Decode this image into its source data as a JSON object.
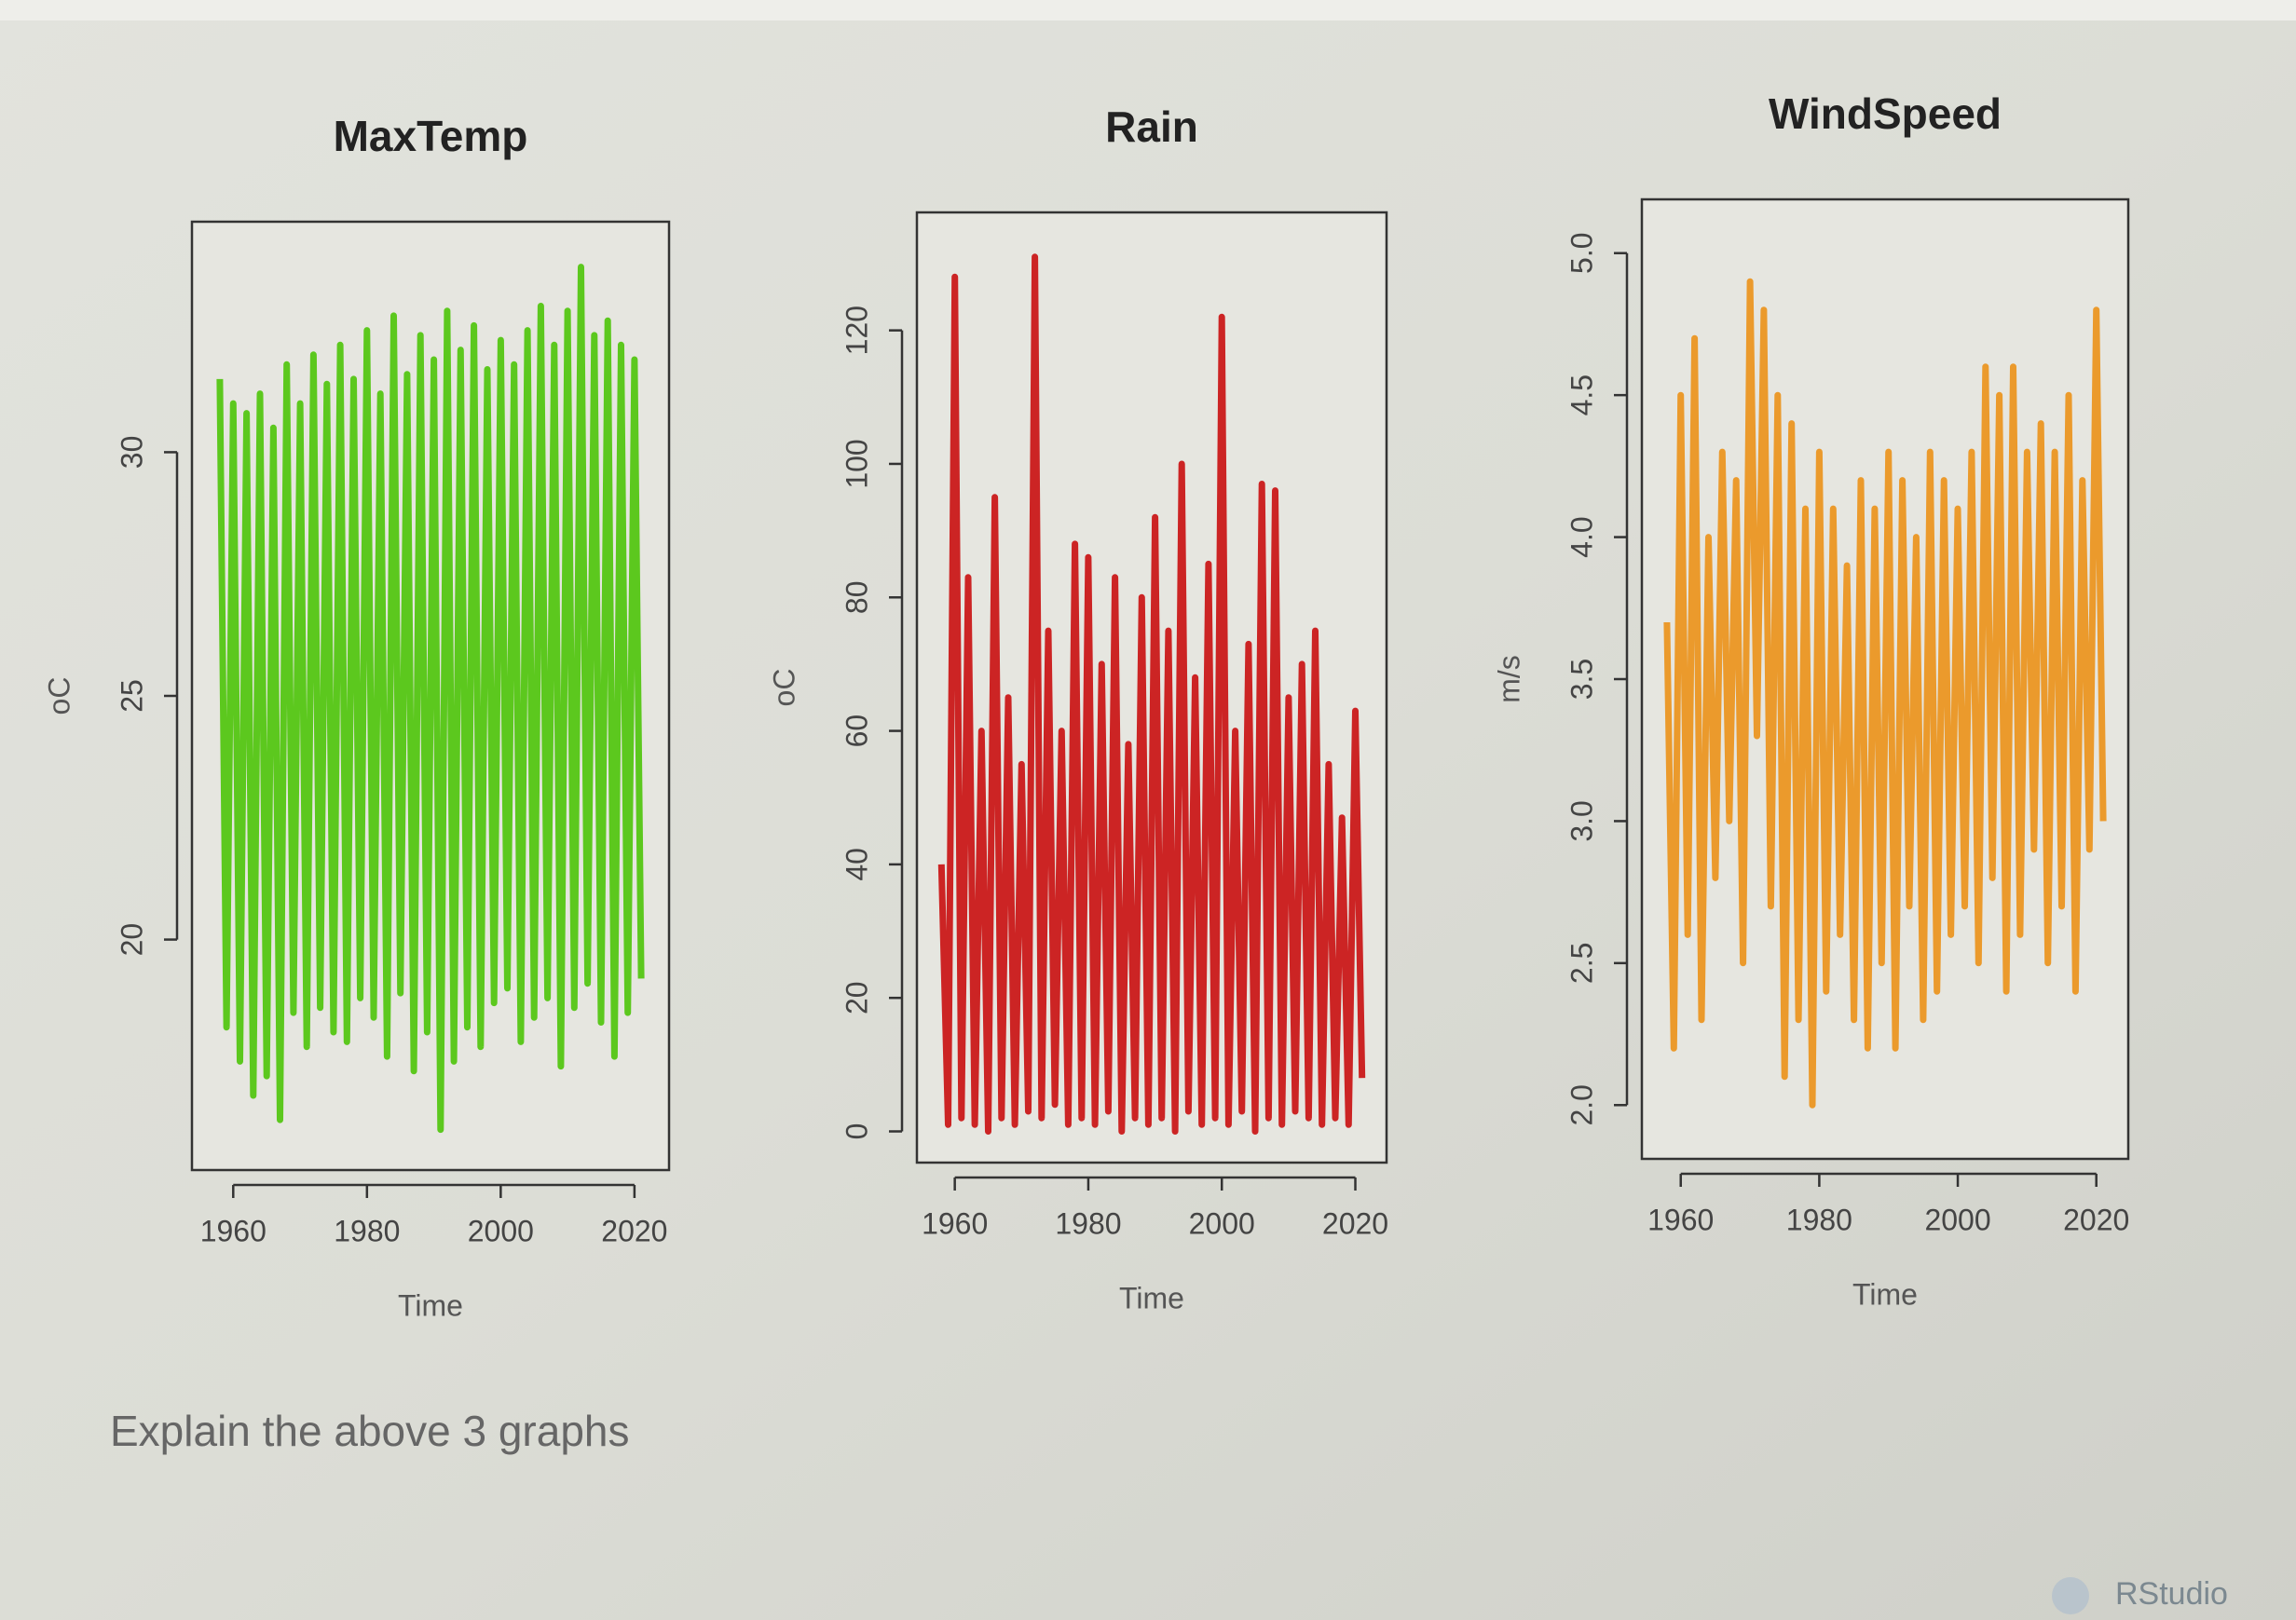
{
  "chart_data": [
    {
      "type": "line",
      "title": "MaxTemp",
      "x_label": "Time",
      "y_label": "oC",
      "color": "#5cc81e",
      "x": [
        1958,
        1959,
        1960,
        1961,
        1962,
        1963,
        1964,
        1965,
        1966,
        1967,
        1968,
        1969,
        1970,
        1971,
        1972,
        1973,
        1974,
        1975,
        1976,
        1977,
        1978,
        1979,
        1980,
        1981,
        1982,
        1983,
        1984,
        1985,
        1986,
        1987,
        1988,
        1989,
        1990,
        1991,
        1992,
        1993,
        1994,
        1995,
        1996,
        1997,
        1998,
        1999,
        2000,
        2001,
        2002,
        2003,
        2004,
        2005,
        2006,
        2007,
        2008,
        2009,
        2010,
        2011,
        2012,
        2013,
        2014,
        2015,
        2016,
        2017,
        2018,
        2019,
        2020,
        2021
      ],
      "values": [
        31.5,
        18.2,
        31,
        17.5,
        30.8,
        16.8,
        31.2,
        17.2,
        30.5,
        16.3,
        31.8,
        18.5,
        31,
        17.8,
        32,
        18.6,
        31.4,
        18.1,
        32.2,
        17.9,
        31.5,
        18.8,
        32.5,
        18.4,
        31.2,
        17.6,
        32.8,
        18.9,
        31.6,
        17.3,
        32.4,
        18.1,
        31.9,
        16.1,
        32.9,
        17.5,
        32.1,
        18.2,
        32.6,
        17.8,
        31.7,
        18.7,
        32.3,
        19,
        31.8,
        17.9,
        32.5,
        18.4,
        33,
        18.8,
        32.2,
        17.4,
        32.9,
        18.6,
        33.8,
        19.1,
        32.4,
        18.3,
        32.7,
        17.6,
        32.2,
        18.5,
        31.9,
        19.2
      ],
      "xlim": [
        1955.5,
        2023.5
      ],
      "xticks": [
        1960,
        1980,
        2000,
        2020
      ],
      "ylim": [
        15.5,
        34.5
      ],
      "yticks": [
        20,
        25,
        30
      ]
    },
    {
      "type": "line",
      "title": "Rain",
      "x_label": "Time",
      "y_label": "oC",
      "color": "#cc2424",
      "x": [
        1958,
        1959,
        1960,
        1961,
        1962,
        1963,
        1964,
        1965,
        1966,
        1967,
        1968,
        1969,
        1970,
        1971,
        1972,
        1973,
        1974,
        1975,
        1976,
        1977,
        1978,
        1979,
        1980,
        1981,
        1982,
        1983,
        1984,
        1985,
        1986,
        1987,
        1988,
        1989,
        1990,
        1991,
        1992,
        1993,
        1994,
        1995,
        1996,
        1997,
        1998,
        1999,
        2000,
        2001,
        2002,
        2003,
        2004,
        2005,
        2006,
        2007,
        2008,
        2009,
        2010,
        2011,
        2012,
        2013,
        2014,
        2015,
        2016,
        2017,
        2018,
        2019,
        2020,
        2021
      ],
      "values": [
        40,
        1,
        128,
        2,
        83,
        1,
        60,
        0,
        95,
        2,
        65,
        1,
        55,
        3,
        131,
        2,
        75,
        4,
        60,
        1,
        88,
        2,
        86,
        1,
        70,
        3,
        83,
        0,
        58,
        2,
        80,
        1,
        92,
        2,
        75,
        0,
        100,
        3,
        68,
        1,
        85,
        2,
        122,
        1,
        60,
        3,
        73,
        0,
        97,
        2,
        96,
        1,
        65,
        3,
        70,
        2,
        75,
        1,
        55,
        2,
        47,
        1,
        63,
        8
      ],
      "xlim": [
        1956,
        2023
      ],
      "xticks": [
        1960,
        1980,
        2000,
        2020
      ],
      "ylim": [
        -3,
        136
      ],
      "yticks": [
        0,
        20,
        40,
        60,
        80,
        100,
        120
      ]
    },
    {
      "type": "line",
      "title": "WindSpeed",
      "x_label": "Time",
      "y_label": "m/s",
      "color": "#eb9a2c",
      "x": [
        1958,
        1959,
        1960,
        1961,
        1962,
        1963,
        1964,
        1965,
        1966,
        1967,
        1968,
        1969,
        1970,
        1971,
        1972,
        1973,
        1974,
        1975,
        1976,
        1977,
        1978,
        1979,
        1980,
        1981,
        1982,
        1983,
        1984,
        1985,
        1986,
        1987,
        1988,
        1989,
        1990,
        1991,
        1992,
        1993,
        1994,
        1995,
        1996,
        1997,
        1998,
        1999,
        2000,
        2001,
        2002,
        2003,
        2004,
        2005,
        2006,
        2007,
        2008,
        2009,
        2010,
        2011,
        2012,
        2013,
        2014,
        2015,
        2016,
        2017,
        2018,
        2019,
        2020,
        2021
      ],
      "values": [
        3.7,
        2.2,
        4.5,
        2.6,
        4.7,
        2.3,
        4.0,
        2.8,
        4.3,
        3.0,
        4.2,
        2.5,
        4.9,
        3.3,
        4.8,
        2.7,
        4.5,
        2.1,
        4.4,
        2.3,
        4.1,
        2.0,
        4.3,
        2.4,
        4.1,
        2.6,
        3.9,
        2.3,
        4.2,
        2.2,
        4.1,
        2.5,
        4.3,
        2.2,
        4.2,
        2.7,
        4.0,
        2.3,
        4.3,
        2.4,
        4.2,
        2.6,
        4.1,
        2.7,
        4.3,
        2.5,
        4.6,
        2.8,
        4.5,
        2.4,
        4.6,
        2.6,
        4.3,
        2.9,
        4.4,
        2.5,
        4.3,
        2.7,
        4.5,
        2.4,
        4.2,
        2.9,
        4.8,
        3.0
      ],
      "xlim": [
        1956,
        2023
      ],
      "xticks": [
        1960,
        1980,
        2000,
        2020
      ],
      "ylim": [
        1.85,
        5.15
      ],
      "yticks": [
        {
          "value": 2,
          "label": "2.0"
        },
        {
          "value": 2.5,
          "label": "2.5"
        },
        {
          "value": 3,
          "label": "3.0"
        },
        {
          "value": 3.5,
          "label": "3.5"
        },
        {
          "value": 4,
          "label": "4.0"
        },
        {
          "value": 4.5,
          "label": "4.5"
        },
        {
          "value": 5,
          "label": "5.0"
        }
      ]
    }
  ],
  "page": {
    "question": "Explain the above 3 graphs",
    "app": "RStudio"
  }
}
